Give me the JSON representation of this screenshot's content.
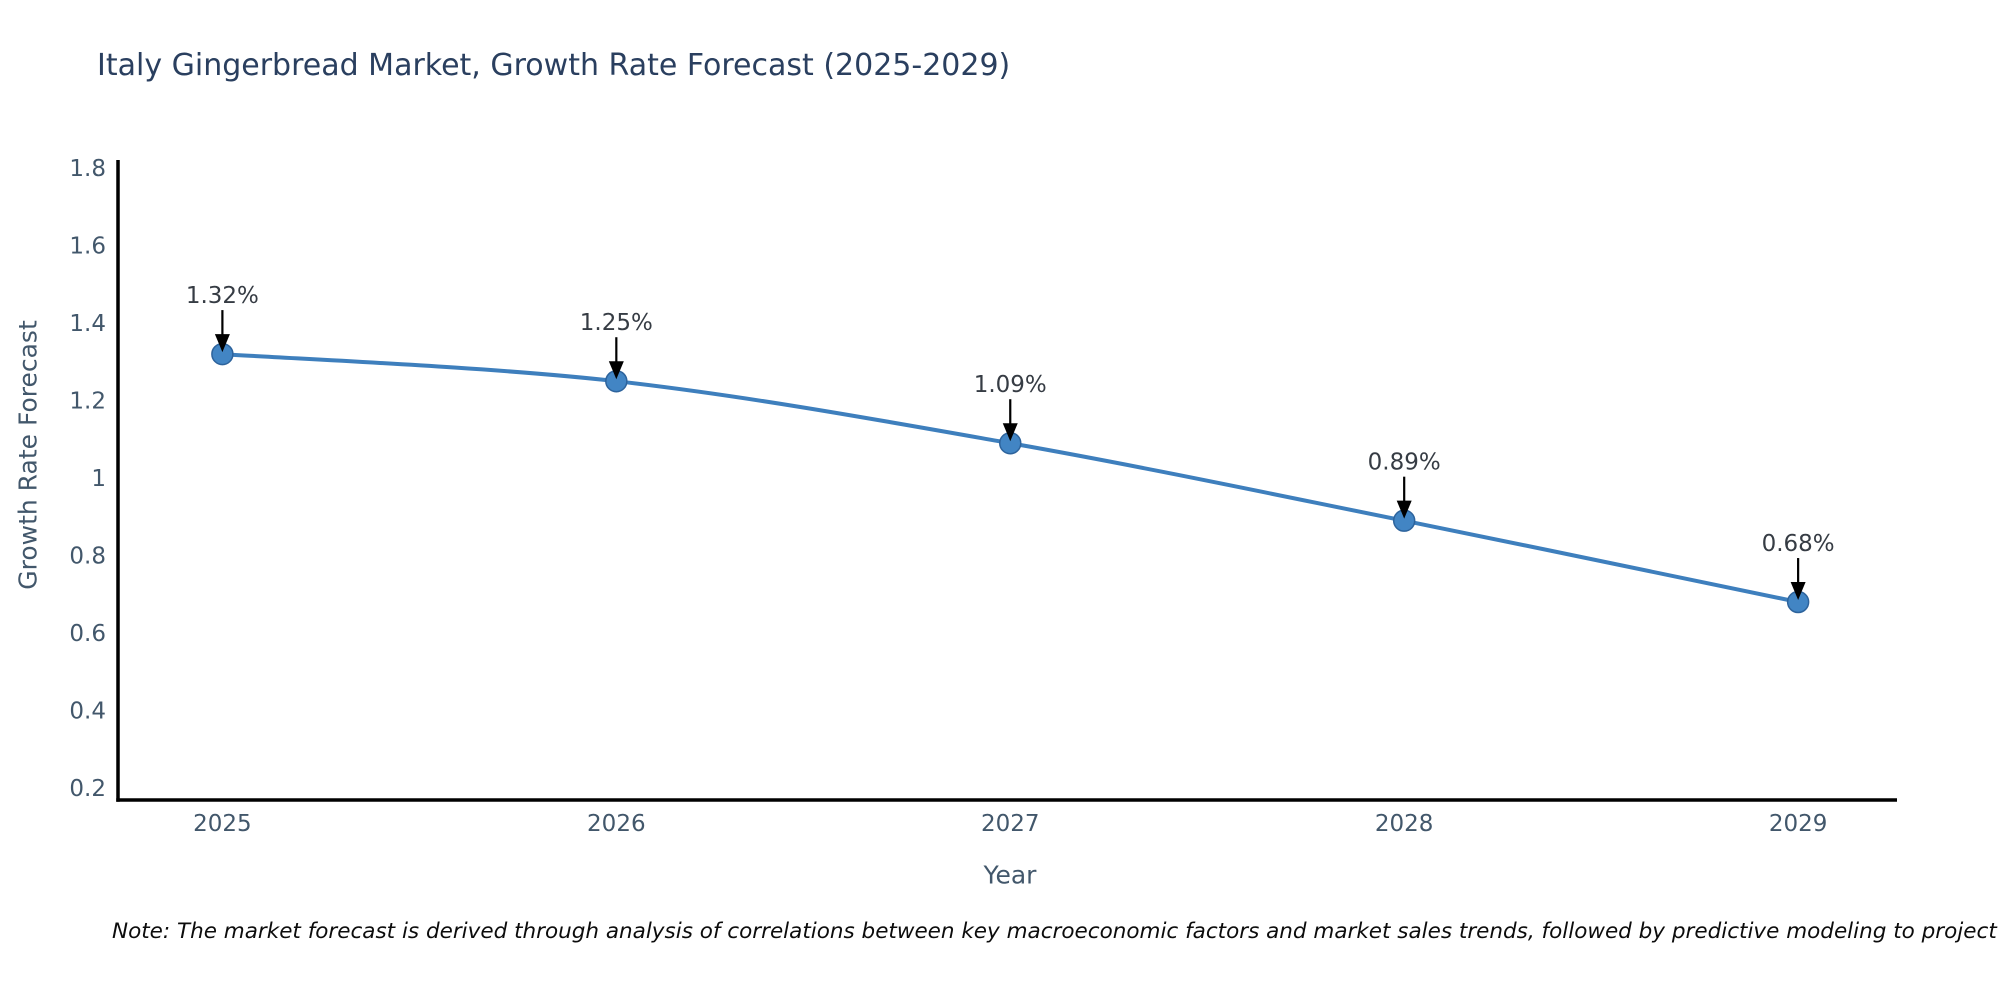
{
  "title": "Italy Gingerbread Market, Growth Rate Forecast (2025-2029)",
  "note": "Note: The market forecast is derived through analysis of correlations between key macroeconomic factors and market sales trends, followed by predictive modeling to project future sales",
  "chart_data": {
    "type": "line",
    "x": [
      2025,
      2026,
      2027,
      2028,
      2029
    ],
    "values": [
      1.32,
      1.25,
      1.09,
      0.89,
      0.68
    ],
    "point_labels": [
      "1.32%",
      "1.25%",
      "1.09%",
      "0.89%",
      "0.68%"
    ],
    "title": "Italy Gingerbread Market, Growth Rate Forecast (2025-2029)",
    "xlabel": "Year",
    "ylabel": "Growth Rate Forecast",
    "xticks": [
      2025,
      2026,
      2027,
      2028,
      2029
    ],
    "yticks": [
      0.2,
      0.4,
      0.6,
      0.8,
      1,
      1.2,
      1.4,
      1.6,
      1.8
    ],
    "xlim": [
      2024.735,
      2029.251
    ],
    "ylim": [
      0.169,
      1.821
    ],
    "grid": false,
    "legend_position": "none",
    "colors": {
      "line": "#3e7fbd",
      "marker_fill": "#4285c4",
      "marker_edge": "#2d639c",
      "spine": "#000000",
      "tick_label": "#42576b",
      "annotation_text": "#363c44",
      "annotation_arrow": "#000000",
      "title": "#2a3f5f"
    }
  }
}
